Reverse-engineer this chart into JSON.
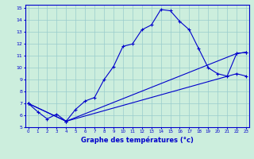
{
  "xlabel": "Graphe des températures (°c)",
  "bg_color": "#cceedd",
  "line_color": "#0000cc",
  "grid_color": "#99cccc",
  "yticks": [
    5,
    6,
    7,
    8,
    9,
    10,
    11,
    12,
    13,
    14,
    15
  ],
  "xticks": [
    0,
    1,
    2,
    3,
    4,
    5,
    6,
    7,
    8,
    9,
    10,
    11,
    12,
    13,
    14,
    15,
    16,
    17,
    18,
    19,
    20,
    21,
    22,
    23
  ],
  "curve1_x": [
    0,
    1,
    2,
    3,
    4,
    5,
    6,
    7,
    8,
    9,
    10,
    11,
    12,
    13,
    14,
    15,
    16,
    17,
    18,
    19,
    20,
    21,
    22,
    23
  ],
  "curve1_y": [
    7.0,
    6.3,
    5.7,
    6.1,
    5.5,
    6.5,
    7.2,
    7.5,
    9.0,
    10.1,
    11.8,
    12.0,
    13.2,
    13.6,
    14.9,
    14.8,
    13.9,
    13.2,
    11.6,
    10.0,
    9.5,
    9.3,
    11.2,
    11.3
  ],
  "curve2_x": [
    0,
    4,
    22,
    23
  ],
  "curve2_y": [
    7.0,
    5.5,
    11.2,
    11.3
  ],
  "curve3_x": [
    0,
    4,
    22,
    23
  ],
  "curve3_y": [
    7.0,
    5.5,
    9.5,
    9.3
  ]
}
